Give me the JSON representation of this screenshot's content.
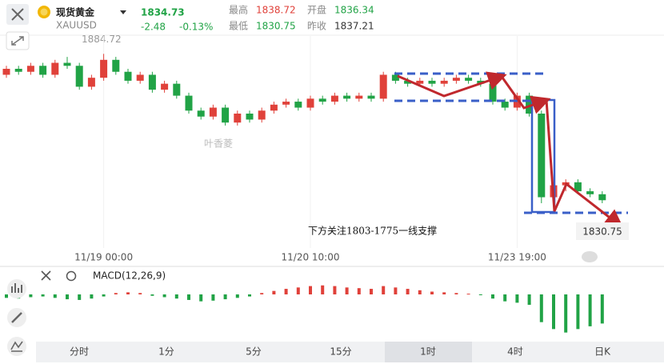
{
  "header": {
    "symbol": "现货黄金",
    "code": "XAUUSD",
    "price": 1834.73,
    "change": -2.48,
    "change_pct": "-0.13%",
    "stats": [
      {
        "label": "最高",
        "value": 1838.72
      },
      {
        "label": "开盘",
        "value": 1836.34
      },
      {
        "label": "最低",
        "value": 1830.75
      },
      {
        "label": "昨收",
        "value": 1837.21
      }
    ]
  },
  "axis_top_label": 1884.72,
  "current_price_label": 1830.75,
  "annotation": "下方关注1803-1775一线支撑",
  "watermark": "叶香菱",
  "chart_data": [
    {
      "type": "candlestick",
      "up_color": "#e0413a",
      "down_color": "#21a346",
      "ylim": [
        1815,
        1890
      ],
      "categories": [
        null,
        null,
        null,
        null,
        null,
        null,
        null,
        null,
        "11/19 00:00",
        null,
        null,
        null,
        null,
        null,
        null,
        null,
        null,
        null,
        null,
        null,
        null,
        null,
        null,
        null,
        null,
        "11/20 10:00",
        null,
        null,
        null,
        null,
        null,
        null,
        null,
        null,
        null,
        null,
        null,
        null,
        null,
        null,
        null,
        null,
        "11/23 19:00",
        null,
        null,
        null,
        null,
        null,
        null,
        null
      ],
      "open": [
        1873,
        1875,
        1874,
        1876,
        1873,
        1877,
        1876,
        1869,
        1872,
        1878,
        1874,
        1871,
        1873,
        1868,
        1870,
        1866,
        1861,
        1859,
        1862,
        1857,
        1860,
        1858,
        1861,
        1863,
        1864,
        1862,
        1865,
        1864,
        1866,
        1865,
        1866,
        1865,
        1873,
        1871,
        1870,
        1871,
        1870,
        1871,
        1872,
        1871,
        1870,
        1864,
        1862,
        1866,
        1860,
        1832,
        1836,
        1837,
        1834,
        1833
      ],
      "high": [
        1876,
        1876,
        1877,
        1877,
        1878,
        1879,
        1877,
        1873,
        1880,
        1879,
        1875,
        1874,
        1874,
        1871,
        1871,
        1867,
        1862,
        1863,
        1863,
        1861,
        1861,
        1862,
        1864,
        1865,
        1865,
        1866,
        1866,
        1867,
        1867,
        1867,
        1867,
        1874,
        1874,
        1872,
        1872,
        1872,
        1872,
        1873,
        1873,
        1872,
        1871,
        1865,
        1867,
        1867,
        1861,
        1837,
        1838,
        1838,
        1835,
        1834
      ],
      "low": [
        1872,
        1873,
        1873,
        1872,
        1872,
        1875,
        1868,
        1868,
        1871,
        1873,
        1870,
        1870,
        1867,
        1867,
        1865,
        1860,
        1858,
        1858,
        1856,
        1856,
        1857,
        1857,
        1860,
        1862,
        1861,
        1861,
        1863,
        1863,
        1864,
        1864,
        1864,
        1864,
        1870,
        1869,
        1869,
        1869,
        1869,
        1870,
        1870,
        1869,
        1863,
        1861,
        1861,
        1859,
        1830,
        1831,
        1834,
        1833,
        1832,
        1830
      ],
      "close": [
        1875,
        1874,
        1876,
        1873,
        1877,
        1876,
        1869,
        1872,
        1878,
        1874,
        1871,
        1873,
        1868,
        1870,
        1866,
        1861,
        1859,
        1862,
        1857,
        1860,
        1858,
        1861,
        1863,
        1864,
        1862,
        1865,
        1864,
        1866,
        1865,
        1866,
        1865,
        1873,
        1871,
        1870,
        1871,
        1870,
        1871,
        1872,
        1871,
        1870,
        1864,
        1862,
        1866,
        1860,
        1832,
        1836,
        1837,
        1834,
        1833,
        1831
      ]
    },
    {
      "type": "bar",
      "title": "MACD(12,26,9)",
      "up_color": "#e0413a",
      "down_color": "#21a346",
      "ylim": [
        -6,
        1.5
      ],
      "values": [
        -0.5,
        -0.6,
        -0.4,
        -0.3,
        -0.5,
        -0.7,
        -0.8,
        -0.6,
        -0.3,
        0.2,
        0.3,
        0.2,
        -0.2,
        -0.4,
        -0.6,
        -0.8,
        -1.0,
        -0.9,
        -0.7,
        -0.5,
        -0.3,
        0.2,
        0.5,
        0.8,
        1.0,
        1.2,
        1.3,
        1.2,
        1.0,
        0.9,
        0.8,
        1.2,
        1.0,
        0.8,
        0.6,
        0.4,
        0.3,
        0.2,
        0.1,
        -0.1,
        -0.6,
        -1.0,
        -1.2,
        -1.5,
        -4,
        -5,
        -5.5,
        -5,
        -4.6,
        -4.2
      ]
    }
  ],
  "tabs": [
    "分时",
    "1分",
    "5分",
    "15分",
    "1时",
    "4时",
    "日K"
  ],
  "selected_tab": 4
}
